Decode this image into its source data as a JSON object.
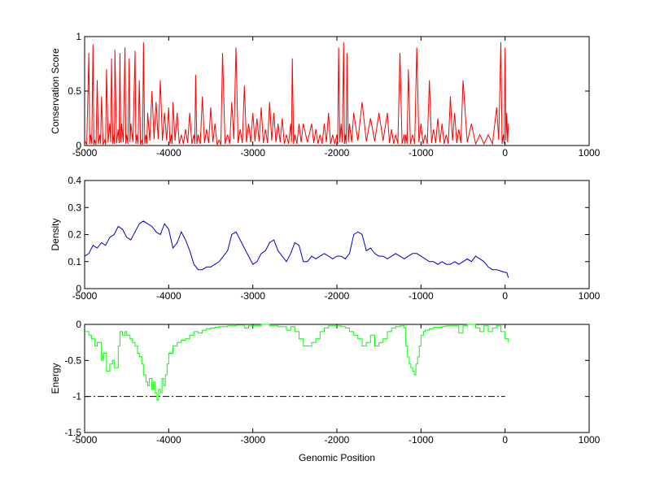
{
  "chart_data": [
    {
      "type": "line",
      "title": "",
      "xlabel": "",
      "ylabel": "Conservation Score",
      "xlim": [
        -5000,
        1000
      ],
      "ylim": [
        0,
        1
      ],
      "xticks": [
        "-5000",
        "-4000",
        "-3000",
        "-2000",
        "-1000",
        "0",
        "1000"
      ],
      "yticks": [
        "0",
        "0.5",
        "1"
      ],
      "color": "#ff0000",
      "style": "spiky",
      "series": [
        {
          "x": [
            -5000,
            -4950,
            -4930,
            -4900,
            -4880,
            -4850,
            -4820,
            -4800,
            -4760,
            -4740,
            -4700,
            -4680,
            -4650,
            -4640,
            -4600,
            -4580,
            -4560,
            -4520,
            -4500,
            -4470,
            -4450,
            -4400,
            -4380,
            -4350,
            -4320,
            -4300,
            -4270,
            -4250,
            -4200,
            -4150,
            -4100,
            -4050,
            -4000,
            -3970,
            -3950,
            -3900,
            -3850,
            -3800,
            -3750,
            -3700,
            -3680,
            -3650,
            -3600,
            -3550,
            -3500,
            -3450,
            -3400,
            -3360,
            -3300,
            -3250,
            -3200,
            -3150,
            -3100,
            -3050,
            -3000,
            -2950,
            -2900,
            -2850,
            -2800,
            -2750,
            -2700,
            -2650,
            -2600,
            -2550,
            -2530,
            -2500,
            -2450,
            -2400,
            -2300,
            -2250,
            -2200,
            -2150,
            -2100,
            -2050,
            -2000,
            -1980,
            -1950,
            -1920,
            -1900,
            -1880,
            -1850,
            -1800,
            -1700,
            -1600,
            -1500,
            -1400,
            -1350,
            -1300,
            -1250,
            -1200,
            -1180,
            -1150,
            -1100,
            -1050,
            -1000,
            -950,
            -900,
            -850,
            -800,
            -750,
            -700,
            -650,
            -600,
            -550,
            -500,
            -400,
            -300,
            -200,
            -100,
            -50,
            -20,
            0,
            20,
            40
          ],
          "y": [
            0.05,
            0.85,
            0.1,
            0.93,
            0.05,
            0.6,
            0.1,
            0.45,
            0.05,
            0.7,
            0.2,
            0.8,
            0.1,
            0.88,
            0.15,
            0.85,
            0.2,
            0.9,
            0.1,
            0.8,
            0.2,
            0.87,
            0.1,
            0.6,
            0.05,
            0.95,
            0.1,
            0.3,
            0.5,
            0.4,
            0.6,
            0.3,
            0.35,
            0.1,
            0.4,
            0.3,
            0.1,
            0.15,
            0.3,
            0.1,
            0.65,
            0.1,
            0.45,
            0.15,
            0.35,
            0.2,
            0.05,
            0.85,
            0.1,
            0.4,
            0.9,
            0.15,
            0.55,
            0.2,
            0.3,
            0.25,
            0.35,
            0.15,
            0.4,
            0.3,
            0.2,
            0.25,
            0.1,
            0.2,
            0.8,
            0.1,
            0.2,
            0.2,
            0.2,
            0.15,
            0.1,
            0.2,
            0.3,
            0.1,
            0.1,
            0.9,
            0.2,
            0.95,
            0.1,
            0.85,
            0.2,
            0.3,
            0.4,
            0.25,
            0.3,
            0.3,
            0.15,
            0.1,
            0.85,
            0.1,
            0.1,
            0.7,
            0.1,
            0.9,
            0.2,
            0.1,
            0.6,
            0.15,
            0.25,
            0.2,
            0.1,
            0.45,
            0.3,
            0.15,
            0.6,
            0.2,
            0.1,
            0.1,
            0.35,
            0.95,
            0.1,
            0.9,
            0.3,
            0.2
          ]
        }
      ]
    },
    {
      "type": "line",
      "title": "",
      "xlabel": "",
      "ylabel": "Density",
      "xlim": [
        -5000,
        1000
      ],
      "ylim": [
        0,
        0.4
      ],
      "xticks": [
        "-5000",
        "-4000",
        "-3000",
        "-2000",
        "-1000",
        "0",
        "1000"
      ],
      "yticks": [
        "0",
        "0.1",
        "0.2",
        "0.3",
        "0.4"
      ],
      "color": "#0000cc",
      "style": "line",
      "series": [
        {
          "x": [
            -5000,
            -4950,
            -4900,
            -4850,
            -4800,
            -4750,
            -4700,
            -4650,
            -4600,
            -4550,
            -4500,
            -4450,
            -4400,
            -4350,
            -4300,
            -4250,
            -4200,
            -4150,
            -4100,
            -4050,
            -4000,
            -3950,
            -3900,
            -3850,
            -3800,
            -3750,
            -3700,
            -3650,
            -3600,
            -3550,
            -3500,
            -3450,
            -3400,
            -3350,
            -3300,
            -3250,
            -3200,
            -3150,
            -3100,
            -3050,
            -3000,
            -2950,
            -2900,
            -2850,
            -2800,
            -2750,
            -2700,
            -2650,
            -2600,
            -2550,
            -2500,
            -2450,
            -2400,
            -2350,
            -2300,
            -2250,
            -2200,
            -2150,
            -2100,
            -2050,
            -2000,
            -1950,
            -1900,
            -1850,
            -1800,
            -1750,
            -1700,
            -1650,
            -1600,
            -1550,
            -1500,
            -1450,
            -1400,
            -1350,
            -1300,
            -1250,
            -1200,
            -1150,
            -1100,
            -1050,
            -1000,
            -950,
            -900,
            -850,
            -800,
            -750,
            -700,
            -650,
            -600,
            -550,
            -500,
            -450,
            -400,
            -350,
            -300,
            -250,
            -200,
            -150,
            -100,
            -50,
            0,
            20,
            40
          ],
          "y": [
            0.12,
            0.13,
            0.16,
            0.15,
            0.17,
            0.16,
            0.19,
            0.2,
            0.23,
            0.22,
            0.19,
            0.18,
            0.21,
            0.24,
            0.25,
            0.24,
            0.23,
            0.21,
            0.2,
            0.24,
            0.22,
            0.15,
            0.17,
            0.21,
            0.18,
            0.14,
            0.09,
            0.07,
            0.07,
            0.08,
            0.08,
            0.09,
            0.1,
            0.12,
            0.14,
            0.2,
            0.21,
            0.18,
            0.15,
            0.12,
            0.09,
            0.1,
            0.13,
            0.14,
            0.17,
            0.18,
            0.14,
            0.12,
            0.1,
            0.13,
            0.17,
            0.16,
            0.1,
            0.1,
            0.12,
            0.11,
            0.12,
            0.13,
            0.12,
            0.11,
            0.12,
            0.12,
            0.11,
            0.13,
            0.2,
            0.21,
            0.2,
            0.14,
            0.15,
            0.13,
            0.12,
            0.12,
            0.11,
            0.12,
            0.13,
            0.12,
            0.11,
            0.12,
            0.13,
            0.13,
            0.12,
            0.11,
            0.1,
            0.1,
            0.09,
            0.1,
            0.09,
            0.09,
            0.1,
            0.09,
            0.1,
            0.11,
            0.1,
            0.12,
            0.11,
            0.1,
            0.08,
            0.07,
            0.07,
            0.065,
            0.06,
            0.06,
            0.04
          ]
        }
      ]
    },
    {
      "type": "line",
      "title": "",
      "xlabel": "Genomic Position",
      "ylabel": "Energy",
      "xlim": [
        -5000,
        1000
      ],
      "ylim": [
        -1.5,
        0
      ],
      "xticks": [
        "-5000",
        "-4000",
        "-3000",
        "-2000",
        "-1000",
        "0",
        "1000"
      ],
      "yticks": [
        "-1.5",
        "-1",
        "-0.5",
        "0"
      ],
      "color": "#00ff00",
      "style": "step",
      "series": [
        {
          "x": [
            -5000,
            -4980,
            -4950,
            -4920,
            -4880,
            -4850,
            -4800,
            -4780,
            -4740,
            -4700,
            -4670,
            -4650,
            -4600,
            -4580,
            -4550,
            -4520,
            -4500,
            -4460,
            -4430,
            -4400,
            -4370,
            -4350,
            -4320,
            -4300,
            -4270,
            -4250,
            -4230,
            -4200,
            -4180,
            -4160,
            -4140,
            -4120,
            -4100,
            -4080,
            -4060,
            -4040,
            -4020,
            -4000,
            -3950,
            -3900,
            -3850,
            -3800,
            -3750,
            -3700,
            -3650,
            -3600,
            -3550,
            -3500,
            -3450,
            -3400,
            -3300,
            -3200,
            -3100,
            -3050,
            -3000,
            -2900,
            -2800,
            -2700,
            -2600,
            -2550,
            -2500,
            -2450,
            -2400,
            -2350,
            -2300,
            -2250,
            -2200,
            -2150,
            -2100,
            -2000,
            -1950,
            -1900,
            -1850,
            -1800,
            -1750,
            -1700,
            -1650,
            -1600,
            -1550,
            -1500,
            -1450,
            -1400,
            -1350,
            -1300,
            -1250,
            -1200,
            -1180,
            -1160,
            -1140,
            -1120,
            -1100,
            -1080,
            -1060,
            -1040,
            -1020,
            -1000,
            -970,
            -950,
            -900,
            -850,
            -800,
            -750,
            -700,
            -650,
            -600,
            -550,
            -500,
            -450,
            -400,
            -350,
            -300,
            -250,
            -200,
            -150,
            -100,
            -50,
            0,
            20,
            40
          ],
          "y": [
            -0.1,
            -0.1,
            -0.15,
            -0.2,
            -0.3,
            -0.25,
            -0.5,
            -0.4,
            -0.65,
            -0.55,
            -0.5,
            -0.6,
            -0.3,
            -0.1,
            -0.15,
            -0.1,
            -0.15,
            -0.2,
            -0.25,
            -0.3,
            -0.4,
            -0.45,
            -0.55,
            -0.7,
            -0.8,
            -0.85,
            -0.75,
            -0.9,
            -0.8,
            -0.95,
            -1.05,
            -0.9,
            -0.95,
            -0.75,
            -0.85,
            -0.7,
            -0.55,
            -0.4,
            -0.3,
            -0.25,
            -0.22,
            -0.2,
            -0.15,
            -0.1,
            -0.12,
            -0.08,
            -0.06,
            -0.05,
            -0.04,
            -0.03,
            -0.02,
            -0.01,
            -0.05,
            -0.02,
            -0.02,
            0,
            -0.02,
            -0.03,
            -0.08,
            -0.03,
            -0.1,
            -0.2,
            -0.3,
            -0.3,
            -0.25,
            -0.2,
            -0.1,
            -0.05,
            -0.02,
            -0.02,
            -0.03,
            -0.05,
            -0.1,
            -0.15,
            -0.2,
            -0.3,
            -0.25,
            -0.15,
            -0.3,
            -0.25,
            -0.2,
            -0.1,
            -0.05,
            -0.03,
            -0.02,
            -0.05,
            -0.3,
            -0.45,
            -0.55,
            -0.6,
            -0.65,
            -0.7,
            -0.55,
            -0.45,
            -0.3,
            -0.15,
            -0.1,
            -0.08,
            -0.06,
            -0.04,
            -0.04,
            -0.03,
            -0.02,
            -0.02,
            -0.02,
            -0.12,
            -0.02,
            0,
            0,
            -0.05,
            -0.1,
            -0.02,
            -0.1,
            -0.05,
            -0.02,
            -0.1,
            -0.2,
            -0.2,
            -0.25
          ]
        }
      ],
      "reference_line": {
        "y": -1,
        "x_from": -5000,
        "x_to": 0,
        "style": "dash-dot",
        "color": "#000000"
      }
    }
  ]
}
